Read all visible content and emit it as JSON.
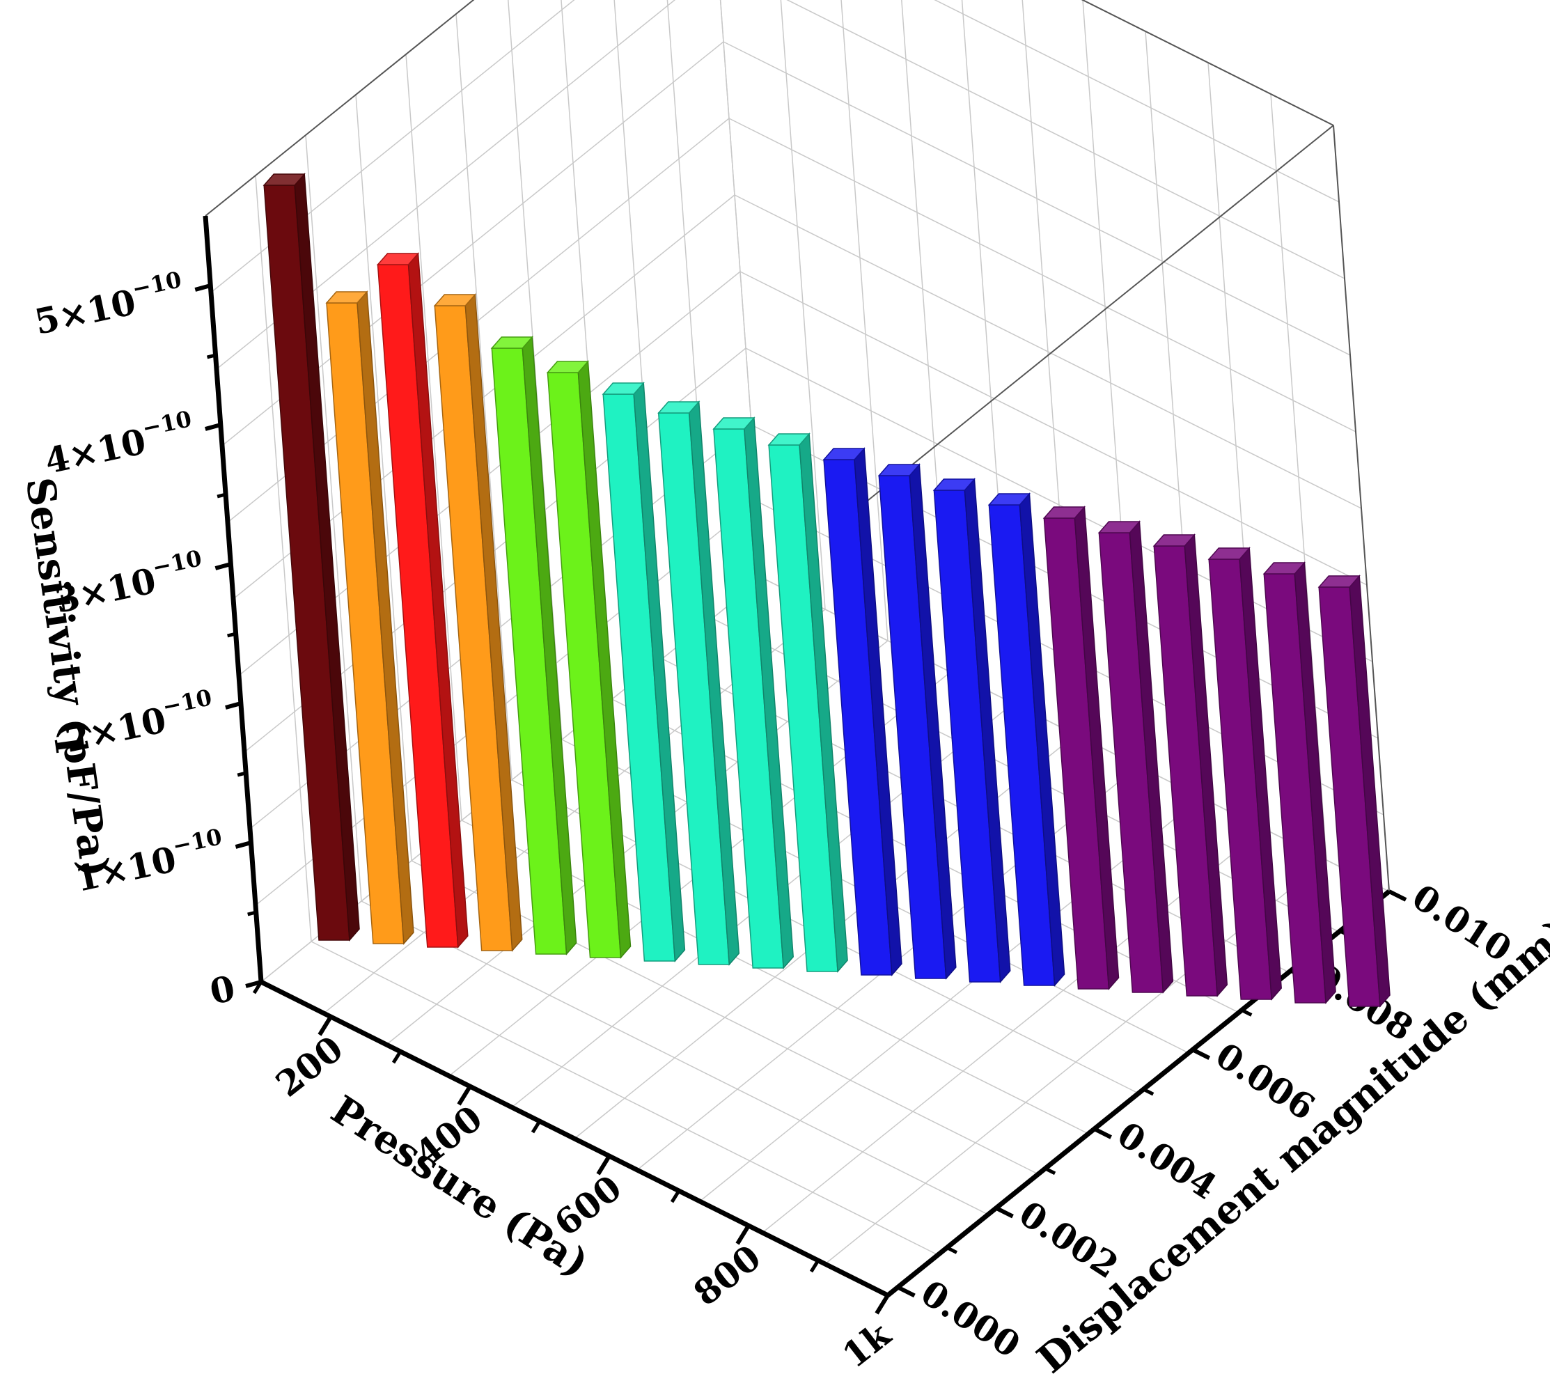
{
  "chart_data": {
    "type": "bar",
    "projection": "3d",
    "xlabel": "Pressure (Pa)",
    "ylabel": "Displacement magnitude (mm)",
    "zlabel": "Sensitivity (pF/Pa)",
    "x_ticks": [
      "200",
      "400",
      "600",
      "800",
      "1k"
    ],
    "y_ticks": [
      "0.000",
      "0.002",
      "0.004",
      "0.006",
      "0.008",
      "0.010"
    ],
    "z_ticks": [
      {
        "base": "0",
        "exp": ""
      },
      {
        "base": "1×10",
        "exp": "−10"
      },
      {
        "base": "2×10",
        "exp": "−10"
      },
      {
        "base": "3×10",
        "exp": "−10"
      },
      {
        "base": "4×10",
        "exp": "−10"
      },
      {
        "base": "5×10",
        "exp": "−10"
      }
    ],
    "xlim": [
      100,
      1000
    ],
    "zlim": [
      0,
      5.5e-10
    ],
    "grid": true,
    "bars": [
      {
        "value": 5.42e-10,
        "color": "#6b0a0e"
      },
      {
        "value": 4.6e-10,
        "color": "#ff9b1a"
      },
      {
        "value": 4.9e-10,
        "color": "#ff1a1a"
      },
      {
        "value": 4.63e-10,
        "color": "#ff9b1a"
      },
      {
        "value": 4.35e-10,
        "color": "#6cf21a"
      },
      {
        "value": 4.2e-10,
        "color": "#6cf21a"
      },
      {
        "value": 4.07e-10,
        "color": "#1ff2c2"
      },
      {
        "value": 3.96e-10,
        "color": "#1ff2c2"
      },
      {
        "value": 3.87e-10,
        "color": "#1ff2c2"
      },
      {
        "value": 3.78e-10,
        "color": "#1ff2c2"
      },
      {
        "value": 3.7e-10,
        "color": "#1a1af2"
      },
      {
        "value": 3.61e-10,
        "color": "#1a1af2"
      },
      {
        "value": 3.53e-10,
        "color": "#1a1af2"
      },
      {
        "value": 3.45e-10,
        "color": "#1a1af2"
      },
      {
        "value": 3.38e-10,
        "color": "#7a0a7d"
      },
      {
        "value": 3.3e-10,
        "color": "#7a0a7d"
      },
      {
        "value": 3.23e-10,
        "color": "#7a0a7d"
      },
      {
        "value": 3.16e-10,
        "color": "#7a0a7d"
      },
      {
        "value": 3.08e-10,
        "color": "#7a0a7d"
      },
      {
        "value": 3.01e-10,
        "color": "#7a0a7d"
      }
    ]
  }
}
